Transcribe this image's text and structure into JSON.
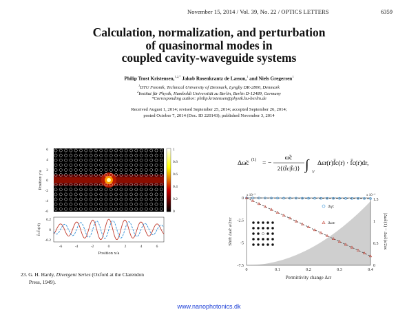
{
  "header": {
    "running_head": "November 15, 2014 / Vol. 39, No. 22 / OPTICS LETTERS",
    "page_number": "6359"
  },
  "title_lines": [
    "Calculation, normalization, and perturbation",
    "of quasinormal modes in",
    "coupled cavity-waveguide systems"
  ],
  "authors": {
    "a1": "Philip Trøst Kristensen,",
    "a1_sup": "1,2,*",
    "a2": " Jakob Rosenkrantz de Lasson,",
    "a2_sup": "1",
    "a3": " and Niels Gregersen",
    "a3_sup": "1"
  },
  "affiliations": [
    {
      "sup": "1",
      "text": "DTU Fotonik, Technical University of Denmark, Lyngby DK-2800, Denmark"
    },
    {
      "sup": "2",
      "text": "Institut für Physik, Humboldt Universität zu Berlin, Berlin D-12489, Germany"
    },
    {
      "sup": "",
      "text": "*Corresponding author: philip.kristensen@physik.hu-berlin.de"
    }
  ],
  "received": [
    "Received August 1, 2014; revised September 25, 2014; accepted September 26, 2014;",
    "posted October 7, 2014 (Doc. ID 220143); published November 3, 2014"
  ],
  "figure1": {
    "top_ylabel": "Position y/a",
    "top_yticks": [
      "6",
      "4",
      "2",
      "0",
      "-2",
      "-4",
      "-6"
    ],
    "colorbar_ticks": [
      "1",
      "0.8",
      "0.6",
      "0.4",
      "0.2",
      "0"
    ],
    "bottom_ylabel": "f̃c/f̃c(r0)",
    "bottom_yticks": [
      "0.2",
      "0",
      "-0.2"
    ],
    "xticks": [
      "-6",
      "-4",
      "-2",
      "0",
      "2",
      "4",
      "6"
    ],
    "xlabel": "Position x/a"
  },
  "equation": {
    "lhs": "Δω̃c",
    "lhs_sup": "(1)",
    "equals": "=",
    "num": "ω̃c",
    "den": "2⟨⟨f̃c|f̃c⟩⟩",
    "integral_sub": "V",
    "rhs": "Δεr(r)f̃c(r) · f̃c(r)dr,"
  },
  "chart_data": {
    "type": "scatter",
    "xlabel": "Permittivity change Δεr",
    "ylabel_left": "Shift Δω̃c a/2πc",
    "ylabel_right": "|Δω̃c(1) − Δω̃c|a/2πc",
    "left_scale_note": "x 10⁻³",
    "right_scale_note": "x 10⁻⁴",
    "xticks": [
      "0",
      "0.1",
      "0.2",
      "0.3",
      "0.4"
    ],
    "yticks_left": [
      "0",
      "-2.5",
      "-5",
      "-7.5"
    ],
    "yticks_right": [
      "0",
      "0.5",
      "1",
      "1.5"
    ],
    "xlim": [
      0,
      0.4
    ],
    "ylim_left": [
      -7.5,
      0
    ],
    "legend": [
      "Δγc",
      "Δωc"
    ],
    "series": [
      {
        "name": "Δγc",
        "x": [
          0.0,
          0.02,
          0.04,
          0.06,
          0.08,
          0.1,
          0.12,
          0.14,
          0.16,
          0.18,
          0.2,
          0.22,
          0.24,
          0.26,
          0.28,
          0.3,
          0.32,
          0.34,
          0.36,
          0.38,
          0.4
        ],
        "y": [
          0,
          -0.01,
          -0.01,
          -0.02,
          -0.02,
          -0.02,
          -0.03,
          -0.03,
          -0.03,
          -0.04,
          -0.04,
          -0.04,
          -0.05,
          -0.05,
          -0.05,
          -0.05,
          -0.06,
          -0.06,
          -0.06,
          -0.07,
          -0.07
        ]
      },
      {
        "name": "Δωc",
        "x": [
          0.0,
          0.02,
          0.04,
          0.06,
          0.08,
          0.1,
          0.12,
          0.14,
          0.16,
          0.18,
          0.2,
          0.22,
          0.24,
          0.26,
          0.28,
          0.3,
          0.32,
          0.34,
          0.36,
          0.38,
          0.4
        ],
        "y": [
          0,
          -0.33,
          -0.66,
          -0.98,
          -1.3,
          -1.63,
          -1.95,
          -2.27,
          -2.6,
          -2.92,
          -3.25,
          -3.57,
          -3.89,
          -4.22,
          -4.54,
          -4.86,
          -5.19,
          -5.51,
          -5.84,
          -6.16,
          -6.48
        ]
      }
    ]
  },
  "reference": {
    "number": "23.",
    "text_a": " G. H. Hardy, ",
    "italic": "Divergent Series",
    "text_b": " (Oxford at the Clarendon",
    "line2": "Press, 1949)."
  },
  "footer": "www.nanophotonics.dk"
}
